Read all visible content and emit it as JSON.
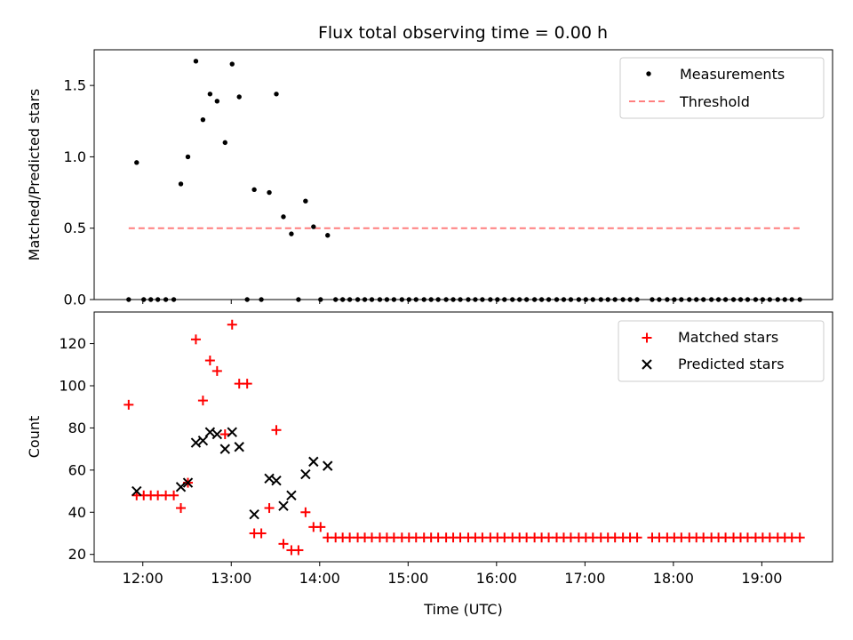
{
  "title": "Flux total observing time = 0.00 h",
  "colors": {
    "measure": "#000000",
    "threshold": "#ff7f7f",
    "matched": "#ff0000",
    "predicted": "#000000"
  },
  "chart_data": [
    {
      "type": "scatter",
      "ylabel": "Matched/Predicted stars",
      "xlim": [
        11.45,
        19.8
      ],
      "ylim": [
        0,
        1.75
      ],
      "yticks": [
        0.0,
        0.5,
        1.0,
        1.5
      ],
      "ytick_labels": [
        "0.0",
        "0.5",
        "1.0",
        "1.5"
      ],
      "legend": {
        "position": "top-right",
        "entries": [
          "Measurements",
          "Threshold"
        ]
      },
      "series": [
        {
          "name": "Measurements",
          "x": [
            11.84,
            11.93,
            12.01,
            12.09,
            12.17,
            12.26,
            12.35,
            12.43,
            12.51,
            12.6,
            12.68,
            12.76,
            12.84,
            12.93,
            13.01,
            13.09,
            13.18,
            13.26,
            13.34,
            13.43,
            13.51,
            13.59,
            13.68,
            13.76,
            13.84,
            13.93,
            14.01,
            14.09,
            14.18,
            14.26,
            14.34,
            14.43,
            14.51,
            14.59,
            14.68,
            14.76,
            14.84,
            14.93,
            15.01,
            15.09,
            15.18,
            15.26,
            15.34,
            15.43,
            15.51,
            15.59,
            15.68,
            15.76,
            15.84,
            15.93,
            16.01,
            16.09,
            16.18,
            16.26,
            16.34,
            16.43,
            16.51,
            16.59,
            16.68,
            16.76,
            16.84,
            16.93,
            17.01,
            17.09,
            17.18,
            17.26,
            17.34,
            17.43,
            17.51,
            17.59,
            17.76,
            17.84,
            17.93,
            18.01,
            18.09,
            18.18,
            18.26,
            18.34,
            18.43,
            18.51,
            18.59,
            18.68,
            18.76,
            18.84,
            18.93,
            19.01,
            19.09,
            19.18,
            19.26,
            19.34,
            19.43
          ],
          "y": [
            0,
            0.96,
            0,
            0,
            0,
            0,
            0,
            0.81,
            1.0,
            1.67,
            1.26,
            1.44,
            1.39,
            1.1,
            1.65,
            1.42,
            0,
            0.77,
            0,
            0.75,
            1.44,
            0.58,
            0.46,
            0,
            0.69,
            0.51,
            0,
            0.45,
            0,
            0,
            0,
            0,
            0,
            0,
            0,
            0,
            0,
            0,
            0,
            0,
            0,
            0,
            0,
            0,
            0,
            0,
            0,
            0,
            0,
            0,
            0,
            0,
            0,
            0,
            0,
            0,
            0,
            0,
            0,
            0,
            0,
            0,
            0,
            0,
            0,
            0,
            0,
            0,
            0,
            0,
            0,
            0,
            0,
            0,
            0,
            0,
            0,
            0,
            0,
            0,
            0,
            0,
            0,
            0,
            0,
            0,
            0,
            0,
            0,
            0,
            0
          ]
        },
        {
          "name": "Threshold",
          "x": [
            11.84,
            19.43
          ],
          "y": [
            0.5,
            0.5
          ]
        }
      ]
    },
    {
      "type": "scatter",
      "xlabel": "Time (UTC)",
      "ylabel": "Count",
      "xlim": [
        11.45,
        19.8
      ],
      "ylim": [
        16.5,
        135
      ],
      "xticks": [
        12,
        13,
        14,
        15,
        16,
        17,
        18,
        19
      ],
      "xtick_labels": [
        "12:00",
        "13:00",
        "14:00",
        "15:00",
        "16:00",
        "17:00",
        "18:00",
        "19:00"
      ],
      "yticks": [
        20,
        40,
        60,
        80,
        100,
        120
      ],
      "ytick_labels": [
        "20",
        "40",
        "60",
        "80",
        "100",
        "120"
      ],
      "legend": {
        "position": "top-right",
        "entries": [
          "Matched stars",
          "Predicted stars"
        ]
      },
      "series": [
        {
          "name": "Matched stars",
          "x": [
            11.84,
            11.93,
            12.01,
            12.09,
            12.17,
            12.26,
            12.35,
            12.43,
            12.51,
            12.6,
            12.68,
            12.76,
            12.84,
            12.93,
            13.01,
            13.09,
            13.18,
            13.26,
            13.34,
            13.43,
            13.51,
            13.59,
            13.68,
            13.76,
            13.84,
            13.93,
            14.01,
            14.09,
            14.18,
            14.26,
            14.34,
            14.43,
            14.51,
            14.59,
            14.68,
            14.76,
            14.84,
            14.93,
            15.01,
            15.09,
            15.18,
            15.26,
            15.34,
            15.43,
            15.51,
            15.59,
            15.68,
            15.76,
            15.84,
            15.93,
            16.01,
            16.09,
            16.18,
            16.26,
            16.34,
            16.43,
            16.51,
            16.59,
            16.68,
            16.76,
            16.84,
            16.93,
            17.01,
            17.09,
            17.18,
            17.26,
            17.34,
            17.43,
            17.51,
            17.59,
            17.76,
            17.84,
            17.93,
            18.01,
            18.09,
            18.18,
            18.26,
            18.34,
            18.43,
            18.51,
            18.59,
            18.68,
            18.76,
            18.84,
            18.93,
            19.01,
            19.09,
            19.18,
            19.26,
            19.34,
            19.43
          ],
          "y": [
            91,
            48,
            48,
            48,
            48,
            48,
            48,
            42,
            54,
            122,
            93,
            112,
            107,
            77,
            129,
            101,
            101,
            30,
            30,
            42,
            79,
            25,
            22,
            22,
            40,
            33,
            33,
            28,
            28,
            28,
            28,
            28,
            28,
            28,
            28,
            28,
            28,
            28,
            28,
            28,
            28,
            28,
            28,
            28,
            28,
            28,
            28,
            28,
            28,
            28,
            28,
            28,
            28,
            28,
            28,
            28,
            28,
            28,
            28,
            28,
            28,
            28,
            28,
            28,
            28,
            28,
            28,
            28,
            28,
            28,
            28,
            28,
            28,
            28,
            28,
            28,
            28,
            28,
            28,
            28,
            28,
            28,
            28,
            28,
            28,
            28,
            28,
            28,
            28,
            28,
            28
          ]
        },
        {
          "name": "Predicted stars",
          "x": [
            11.93,
            12.43,
            12.51,
            12.6,
            12.68,
            12.76,
            12.84,
            12.93,
            13.01,
            13.09,
            13.26,
            13.43,
            13.51,
            13.59,
            13.68,
            13.84,
            13.93,
            14.09
          ],
          "y": [
            50,
            52,
            54,
            73,
            74,
            78,
            77,
            70,
            78,
            71,
            39,
            56,
            55,
            43,
            48,
            58,
            64,
            62
          ]
        }
      ]
    }
  ]
}
